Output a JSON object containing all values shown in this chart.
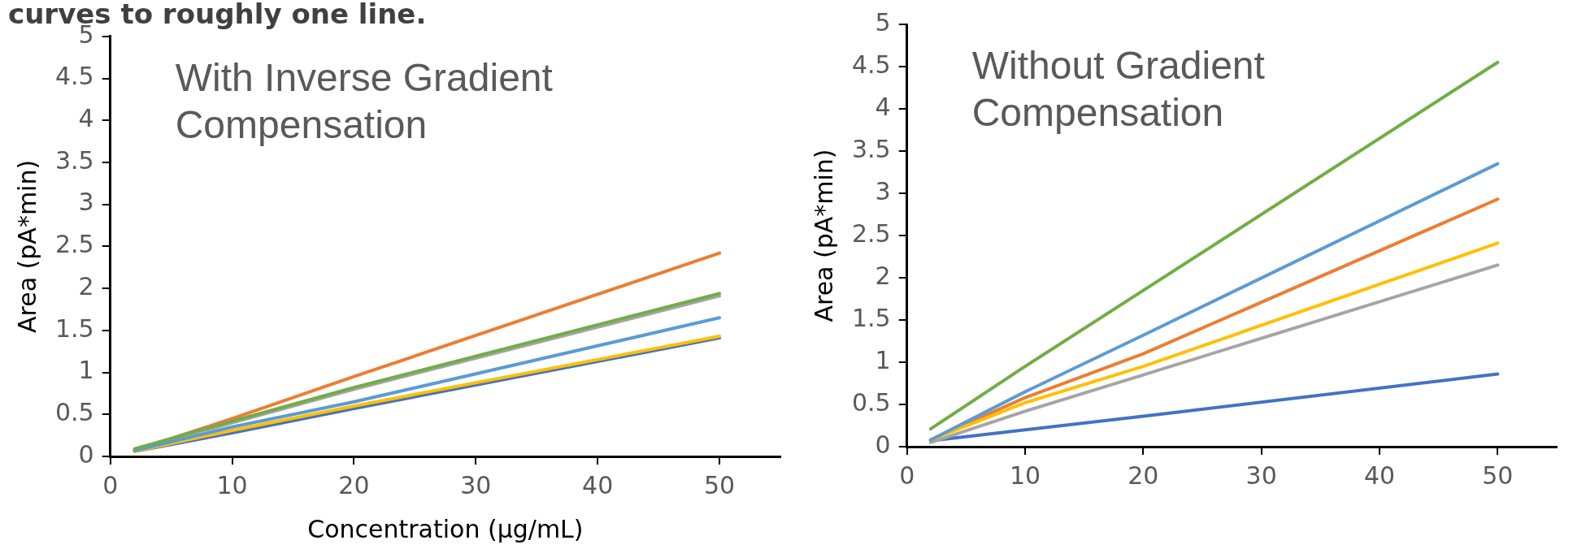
{
  "chart_data": [
    {
      "type": "line",
      "title": "curves to roughly one line.",
      "xlabel": "Concentration (µg/mL)",
      "ylabel": "Area (pA*min)",
      "annotations": [
        "With Inverse Gradient Compensation"
      ],
      "x": [
        2,
        10,
        20,
        50
      ],
      "xlim": [
        0,
        55
      ],
      "xticks": [
        0,
        10,
        20,
        30,
        40,
        50
      ],
      "ylim": [
        0,
        5
      ],
      "yticks": [
        0,
        0.5,
        1,
        1.5,
        2,
        2.5,
        3,
        3.5,
        4,
        4.5,
        5
      ],
      "grid": false,
      "legend": false,
      "marker": "none",
      "line_style": "solid",
      "series": [
        {
          "color": "#4472c4",
          "values": [
            0.06,
            0.28,
            0.57,
            1.41
          ]
        },
        {
          "color": "#ed7d31",
          "values": [
            0.07,
            0.45,
            0.95,
            2.42
          ]
        },
        {
          "color": "#a5a5a5",
          "values": [
            0.08,
            0.4,
            0.8,
            1.91
          ]
        },
        {
          "color": "#ffc000",
          "values": [
            0.06,
            0.31,
            0.6,
            1.43
          ]
        },
        {
          "color": "#5b9bd5",
          "values": [
            0.07,
            0.35,
            0.65,
            1.65
          ]
        },
        {
          "color": "#70ad47",
          "values": [
            0.09,
            0.42,
            0.82,
            1.94
          ]
        }
      ]
    },
    {
      "type": "line",
      "ylabel": "Area (pA*min)",
      "annotations": [
        "Without Gradient Compensation"
      ],
      "x": [
        2,
        10,
        20,
        50
      ],
      "xlim": [
        0,
        55
      ],
      "xticks": [
        0,
        10,
        20,
        30,
        40,
        50
      ],
      "ylim": [
        0,
        5
      ],
      "yticks": [
        0,
        0.5,
        1,
        1.5,
        2,
        2.5,
        3,
        3.5,
        4,
        4.5,
        5
      ],
      "grid": false,
      "legend": false,
      "marker": "none",
      "line_style": "solid",
      "series": [
        {
          "color": "#4472c4",
          "values": [
            0.07,
            0.2,
            0.36,
            0.86
          ]
        },
        {
          "color": "#ed7d31",
          "values": [
            0.08,
            0.58,
            1.1,
            2.93
          ]
        },
        {
          "color": "#a5a5a5",
          "values": [
            0.05,
            0.42,
            0.85,
            2.15
          ]
        },
        {
          "color": "#ffc000",
          "values": [
            0.08,
            0.52,
            0.95,
            2.41
          ]
        },
        {
          "color": "#5b9bd5",
          "values": [
            0.08,
            0.65,
            1.32,
            3.35
          ]
        },
        {
          "color": "#70ad47",
          "values": [
            0.21,
            0.95,
            1.85,
            4.55
          ]
        }
      ]
    }
  ]
}
